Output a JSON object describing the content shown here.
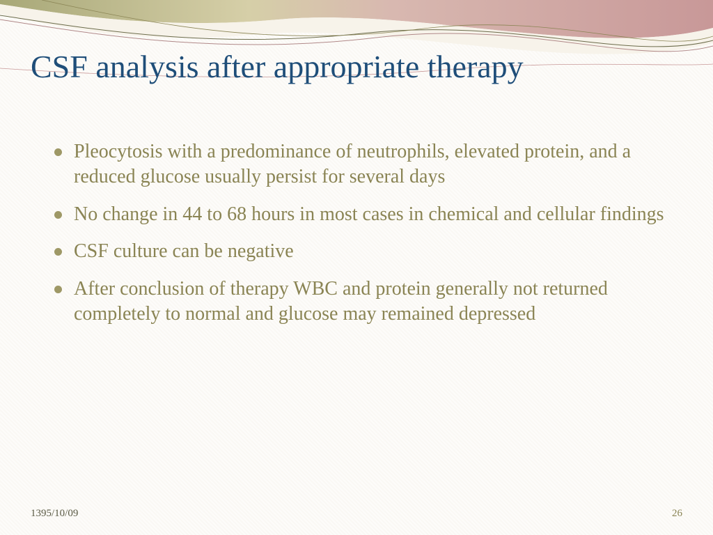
{
  "colors": {
    "title": "#1f4e79",
    "body_text": "#8a8454",
    "bullet": "#9e9866",
    "footer_date": "#5a5a44",
    "page_number": "#8a8454",
    "swoosh_olive": "#a8a878",
    "swoosh_rose": "#c89898",
    "swoosh_cream": "#f5f0e8",
    "swoosh_line_dark": "#6b6b4a",
    "swoosh_line_rose": "#b08888",
    "background": "#fdfcfa"
  },
  "typography": {
    "title_fontsize": 46,
    "body_fontsize": 28,
    "footer_fontsize": 15,
    "font_family": "Georgia"
  },
  "title": "CSF analysis after appropriate therapy",
  "bullets": [
    "Pleocytosis with a predominance of neutrophils, elevated protein, and a reduced glucose usually persist for several days",
    "No change in 44 to 68 hours in most cases in chemical and cellular findings",
    "CSF culture can be negative",
    "After conclusion of therapy WBC and protein generally not returned completely to normal and  glucose may remained depressed"
  ],
  "footer": {
    "date": "1395/10/09",
    "page": "26"
  }
}
